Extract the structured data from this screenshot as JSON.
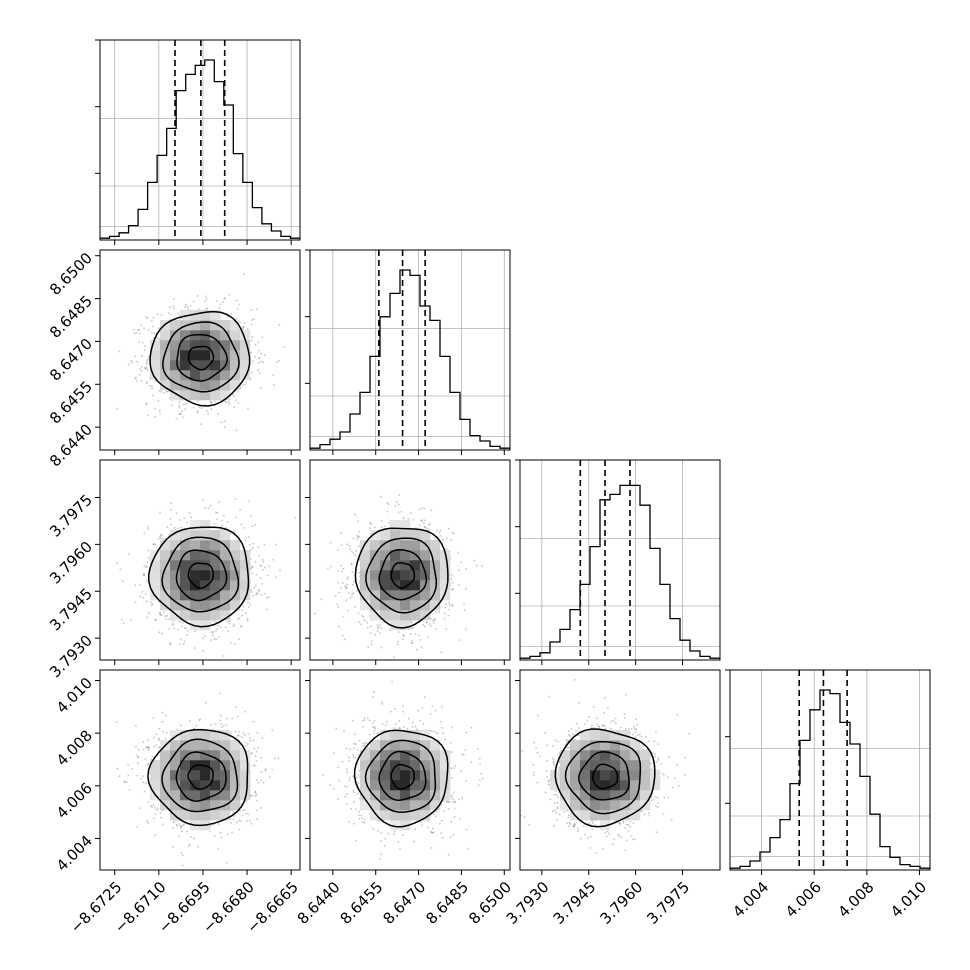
{
  "chart_data": {
    "type": "corner",
    "parameters": [
      {
        "ticks": [
          -8.6725,
          -8.671,
          -8.6695,
          -8.668,
          -8.6665
        ],
        "tick_labels": [
          "−8.6725",
          "−8.6710",
          "−8.6695",
          "−8.6680",
          "−8.6665"
        ],
        "range": [
          -8.673,
          -8.6662
        ],
        "quantiles": [
          -8.67045,
          -8.66957,
          -8.66876
        ],
        "histogram": [
          0.01,
          0.02,
          0.04,
          0.08,
          0.17,
          0.32,
          0.47,
          0.62,
          0.83,
          0.92,
          0.97,
          1.0,
          0.88,
          0.75,
          0.48,
          0.32,
          0.18,
          0.09,
          0.05,
          0.02,
          0.01
        ]
      },
      {
        "ticks": [
          8.644,
          8.6455,
          8.647,
          8.6485,
          8.65
        ],
        "tick_labels": [
          "8.6440",
          "8.6455",
          "8.6470",
          "8.6485",
          "8.6500"
        ],
        "range": [
          8.6432,
          8.6502
        ],
        "quantiles": [
          8.64561,
          8.64644,
          8.64723
        ],
        "histogram": [
          0.01,
          0.03,
          0.06,
          0.1,
          0.2,
          0.32,
          0.52,
          0.74,
          0.87,
          1.0,
          0.97,
          0.8,
          0.72,
          0.52,
          0.32,
          0.17,
          0.08,
          0.05,
          0.02,
          0.01
        ]
      },
      {
        "ticks": [
          3.793,
          3.7945,
          3.796,
          3.7975
        ],
        "tick_labels": [
          "3.7930",
          "3.7945",
          "3.7960",
          "3.7975"
        ],
        "range": [
          3.7923,
          3.7987
        ],
        "quantiles": [
          3.79423,
          3.79502,
          3.79582
        ],
        "histogram": [
          0.01,
          0.02,
          0.04,
          0.1,
          0.17,
          0.28,
          0.42,
          0.63,
          0.89,
          0.92,
          0.97,
          0.97,
          0.86,
          0.62,
          0.42,
          0.23,
          0.11,
          0.05,
          0.02,
          0.01
        ]
      },
      {
        "ticks": [
          4.004,
          4.006,
          4.008,
          4.01
        ],
        "tick_labels": [
          "4.004",
          "4.006",
          "4.008",
          "4.010"
        ],
        "range": [
          4.0028,
          4.0104
        ],
        "quantiles": [
          4.00543,
          4.00635,
          4.00725
        ],
        "histogram": [
          0.01,
          0.02,
          0.05,
          0.1,
          0.18,
          0.28,
          0.48,
          0.72,
          0.89,
          1.0,
          0.98,
          0.82,
          0.7,
          0.52,
          0.31,
          0.13,
          0.07,
          0.03,
          0.02,
          0.01
        ]
      }
    ],
    "correlations": [
      [
        1,
        0,
        0,
        0
      ],
      [
        0,
        1,
        0,
        0
      ],
      [
        0,
        0,
        1,
        0
      ],
      [
        0,
        0,
        0,
        1
      ]
    ],
    "contour_levels": [
      0.5,
      1.0,
      1.5,
      2.0
    ],
    "sample_points_per_panel": 1400,
    "histogram_style": "step",
    "quantile_line_style": "dashed",
    "grid": true
  }
}
